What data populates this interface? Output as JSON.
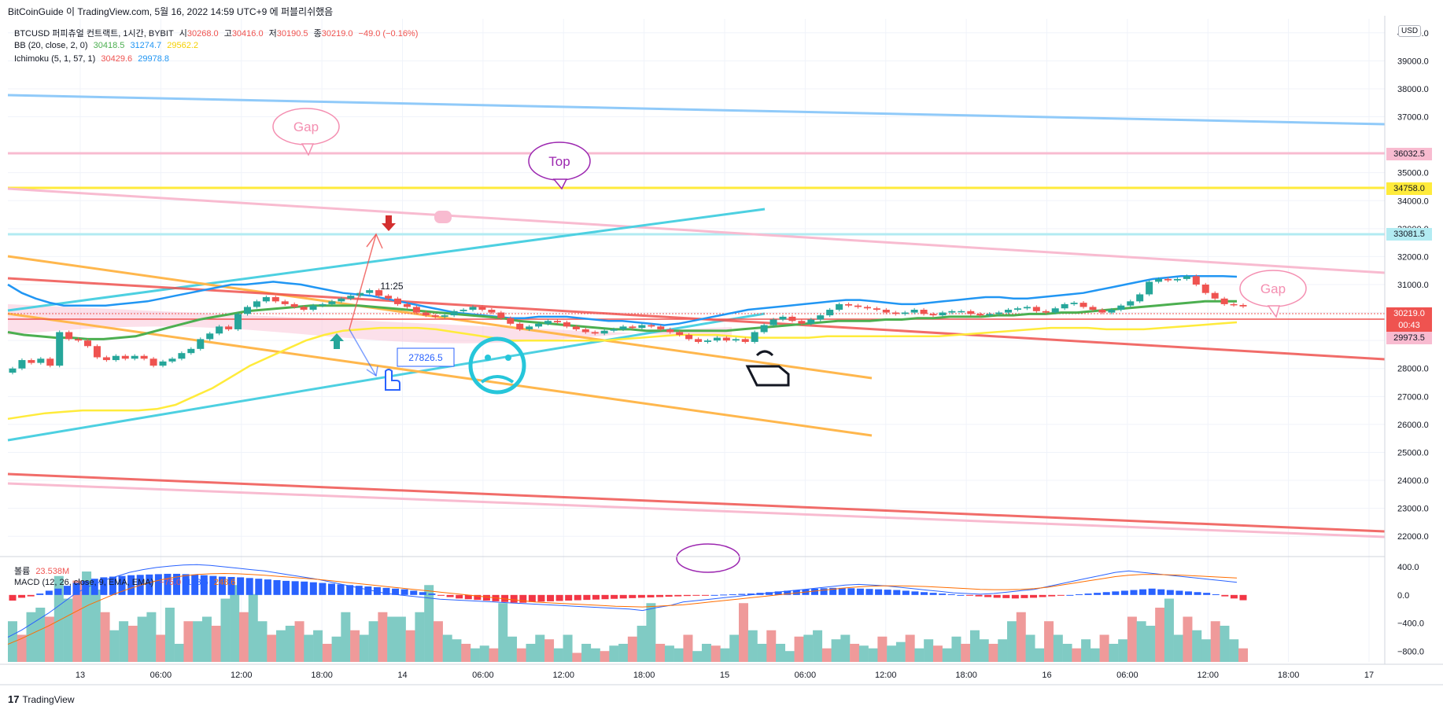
{
  "header": {
    "text": "BitCoinGuide 이 TradingView.com, 5월 16, 2022 14:59 UTC+9 에 퍼블리쉬했음"
  },
  "legend": {
    "symbol": {
      "name": "BTCUSD 퍼피츄얼 컨트랙트, 1시간, BYBIT",
      "o_label": "시",
      "o": "30268.0",
      "h_label": "고",
      "h": "30416.0",
      "l_label": "저",
      "l": "30190.5",
      "c_label": "종",
      "c": "30219.0",
      "chg": "−49.0 (−0.16%)"
    },
    "bb": {
      "name": "BB (20, close, 2, 0)",
      "v1": "30418.5",
      "v2": "31274.7",
      "v3": "29562.2"
    },
    "ichimoku": {
      "name": "Ichimoku (5, 1, 57, 1)",
      "v1": "30429.6",
      "v2": "29978.8"
    },
    "volume": {
      "name": "볼륨",
      "value": "23.538M"
    },
    "macd": {
      "name": "MACD (12, 26, close, 9, EMA, EMA)",
      "v1": "−75.0",
      "v2": "173.5",
      "v3": "248.6"
    }
  },
  "currency_button": "USD",
  "price_axis": [
    "40000.0",
    "39000.0",
    "38000.0",
    "37000.0",
    "35000.0",
    "34000.0",
    "33000.0",
    "32000.0",
    "31000.0",
    "30000.0",
    "29000.0",
    "28000.0",
    "27000.0",
    "26000.0",
    "25000.0",
    "24000.0",
    "23000.0",
    "22000.0"
  ],
  "price_tags": [
    {
      "label": "36032.5",
      "bg": "#f8bbd0",
      "fg": "#131722"
    },
    {
      "label": "34758.0",
      "bg": "#ffeb3b",
      "fg": "#131722"
    },
    {
      "label": "33081.5",
      "bg": "#b2ebf2",
      "fg": "#131722"
    },
    {
      "label": "30219.0",
      "bg": "#ef5350",
      "fg": "#ffffff"
    },
    {
      "label": "00:43",
      "bg": "#ef5350",
      "fg": "#ffffff"
    },
    {
      "label": "29973.5",
      "bg": "#f8bbd0",
      "fg": "#131722"
    }
  ],
  "macd_axis": [
    "400.0",
    "0.0",
    "−400.0",
    "−800.0"
  ],
  "time_axis": [
    "13",
    "06:00",
    "12:00",
    "18:00",
    "14",
    "06:00",
    "12:00",
    "18:00",
    "15",
    "06:00",
    "12:00",
    "18:00",
    "16",
    "06:00",
    "12:00",
    "18:00",
    "17"
  ],
  "annotations": {
    "gap_left": "Gap",
    "top": "Top",
    "gap_right": "Gap",
    "arrow_price": "27826.5",
    "arrow_time": "11:25"
  },
  "footer": {
    "brand": "TradingView"
  },
  "colors": {
    "up": "#26a69a",
    "down": "#ef5350",
    "bb_basis": "#4caf50",
    "bb_upper": "#2196f3",
    "bb_lower": "#ffeb3b",
    "macd_line": "#2962ff",
    "signal_line": "#ff6d00"
  },
  "chart_data": {
    "type": "candlestick",
    "symbol": "BTCUSD",
    "interval": "1시간",
    "ylim": [
      21500,
      40500
    ],
    "macd_ylim": [
      -950,
      500
    ],
    "x_ticks": [
      "13",
      "06:00",
      "12:00",
      "18:00",
      "14",
      "06:00",
      "12:00",
      "18:00",
      "15",
      "06:00",
      "12:00",
      "18:00",
      "16",
      "06:00",
      "12:00",
      "18:00",
      "17"
    ],
    "candles_start_time": "2022-05-12 22:00",
    "candles_close": [
      28000,
      28300,
      28200,
      28350,
      28100,
      29300,
      29050,
      29000,
      28800,
      28400,
      28300,
      28450,
      28350,
      28450,
      28350,
      28100,
      28250,
      28350,
      28550,
      28700,
      29050,
      29250,
      29500,
      29400,
      29950,
      30200,
      30400,
      30550,
      30400,
      30300,
      30200,
      30100,
      30250,
      30300,
      30400,
      30500,
      30600,
      30700,
      30800,
      30600,
      30500,
      30300,
      30200,
      30000,
      29900,
      29850,
      29900,
      30050,
      30100,
      30200,
      30100,
      30000,
      29800,
      29600,
      29400,
      29500,
      29600,
      29700,
      29650,
      29500,
      29400,
      29300,
      29250,
      29350,
      29400,
      29500,
      29450,
      29550,
      29500,
      29400,
      29300,
      29200,
      29050,
      28950,
      29000,
      29100,
      29000,
      29050,
      28950,
      29300,
      29550,
      29750,
      29850,
      29700,
      29600,
      29750,
      29900,
      30100,
      30300,
      30250,
      30200,
      30150,
      30100,
      30000,
      29950,
      30000,
      30100,
      29950,
      29900,
      30000,
      30050,
      30050,
      29950,
      29900,
      29950,
      30000,
      30100,
      30150,
      30200,
      30050,
      30000,
      30150,
      30300,
      30350,
      30200,
      30100,
      30000,
      30100,
      30250,
      30400,
      30650,
      31100,
      31200,
      31150,
      31200,
      31300,
      31000,
      30700,
      30500,
      30300,
      30270,
      30219
    ],
    "macd_hist": [
      -80,
      -40,
      -20,
      20,
      60,
      90,
      130,
      170,
      200,
      230,
      250,
      260,
      270,
      280,
      285,
      290,
      295,
      300,
      300,
      295,
      290,
      280,
      270,
      260,
      255,
      250,
      240,
      230,
      220,
      210,
      200,
      195,
      190,
      180,
      170,
      160,
      150,
      140,
      130,
      120,
      110,
      100,
      90,
      80,
      60,
      40,
      20,
      -10,
      -30,
      -50,
      -60,
      -70,
      -80,
      -90,
      -100,
      -110,
      -110,
      -100,
      -95,
      -90,
      -85,
      -80,
      -75,
      -70,
      -65,
      -60,
      -55,
      -50,
      -45,
      -40,
      -35,
      -30,
      -25,
      -20,
      -15,
      -10,
      -5,
      0,
      5,
      10,
      15,
      20,
      30,
      40,
      50,
      60,
      70,
      80,
      90,
      95,
      100,
      100,
      95,
      90,
      85,
      80,
      75,
      70,
      60,
      50,
      40,
      30,
      20,
      10,
      0,
      -10,
      -20,
      -30,
      -40,
      -45,
      -50,
      -45,
      -40,
      -30,
      -20,
      -10,
      0,
      10,
      20,
      30,
      40,
      50,
      60,
      70,
      80,
      90,
      80,
      70,
      60,
      50,
      40,
      30,
      10,
      -20,
      -50,
      -75
    ],
    "macd_line": [
      -600,
      -500,
      -380,
      -260,
      -120,
      20,
      120,
      200,
      260,
      320,
      360,
      390,
      410,
      425,
      430,
      420,
      400,
      380,
      360,
      340,
      310,
      280,
      250,
      220,
      180,
      140,
      100,
      60,
      20,
      0,
      -20,
      -40,
      -60,
      -70,
      -80,
      -90,
      -100,
      -110,
      -120,
      -130,
      -140,
      -150,
      -160,
      -170,
      -180,
      -190,
      -200,
      -220,
      -180,
      -150,
      -100,
      -80,
      -60,
      -40,
      -20,
      0,
      20,
      40,
      60,
      80,
      100,
      120,
      140,
      150,
      140,
      130,
      110,
      90,
      70,
      50,
      30,
      20,
      10,
      20,
      40,
      60,
      80,
      120,
      160,
      200,
      240,
      280,
      320,
      340,
      320,
      300,
      280,
      260,
      240,
      220,
      200,
      180
    ],
    "macd_signal": [
      -700,
      -620,
      -530,
      -440,
      -340,
      -240,
      -140,
      -60,
      20,
      90,
      150,
      200,
      240,
      270,
      290,
      300,
      305,
      300,
      290,
      280,
      265,
      250,
      235,
      220,
      200,
      180,
      160,
      140,
      120,
      100,
      80,
      60,
      40,
      20,
      0,
      -20,
      -40,
      -60,
      -80,
      -100,
      -110,
      -120,
      -130,
      -140,
      -150,
      -160,
      -165,
      -170,
      -160,
      -150,
      -140,
      -120,
      -100,
      -80,
      -60,
      -40,
      -20,
      0,
      20,
      40,
      60,
      80,
      100,
      115,
      125,
      130,
      130,
      125,
      120,
      110,
      100,
      90,
      80,
      75,
      75,
      80,
      90,
      110,
      140,
      170,
      200,
      230,
      260,
      280,
      290,
      290,
      285,
      280,
      270,
      260,
      250,
      240
    ],
    "volume_scale_max": 1,
    "volume": [
      0.45,
      0.3,
      0.55,
      0.6,
      0.5,
      0.95,
      0.7,
      0.9,
      1.0,
      0.8,
      0.55,
      0.35,
      0.45,
      0.4,
      0.5,
      0.55,
      0.3,
      0.6,
      0.2,
      0.45,
      0.45,
      0.5,
      0.4,
      0.7,
      0.85,
      0.55,
      0.75,
      0.45,
      0.3,
      0.35,
      0.4,
      0.45,
      0.3,
      0.35,
      0.2,
      0.28,
      0.55,
      0.35,
      0.3,
      0.45,
      0.55,
      0.5,
      0.5,
      0.35,
      0.55,
      0.85,
      0.45,
      0.3,
      0.25,
      0.2,
      0.15,
      0.18,
      0.15,
      0.65,
      0.28,
      0.15,
      0.2,
      0.3,
      0.25,
      0.15,
      0.3,
      0.1,
      0.2,
      0.15,
      0.12,
      0.18,
      0.2,
      0.28,
      0.4,
      0.65,
      0.2,
      0.18,
      0.15,
      0.3,
      0.12,
      0.2,
      0.18,
      0.15,
      0.3,
      0.65,
      0.35,
      0.2,
      0.35,
      0.2,
      0.12,
      0.28,
      0.3,
      0.35,
      0.15,
      0.25,
      0.3,
      0.2,
      0.18,
      0.15,
      0.28,
      0.18,
      0.22,
      0.3,
      0.15,
      0.25,
      0.18,
      0.15,
      0.28,
      0.2,
      0.35,
      0.25,
      0.2,
      0.25,
      0.45,
      0.55,
      0.3,
      0.15,
      0.45,
      0.3,
      0.2,
      0.15,
      0.25,
      0.15,
      0.3,
      0.2,
      0.25,
      0.5,
      0.45,
      0.4,
      0.6,
      0.7,
      0.3,
      0.5,
      0.35,
      0.25,
      0.45,
      0.4,
      0.25,
      0.15
    ],
    "bb_upper": [
      31000,
      30700,
      30500,
      30350,
      30250,
      30250,
      30250,
      30250,
      30300,
      30350,
      30400,
      30500,
      30600,
      30700,
      30800,
      30900,
      31000,
      31000,
      31050,
      31100,
      31050,
      31000,
      30900,
      30800,
      30700,
      30650,
      30600,
      30500,
      30400,
      30300,
      30200,
      30100,
      30000,
      29950,
      29900,
      29850,
      29800,
      29800,
      29850,
      29850,
      29850,
      29800,
      29750,
      29700,
      29700,
      29650,
      29600,
      29550,
      29600,
      29700,
      29800,
      29900,
      30000,
      30100,
      30150,
      30200,
      30250,
      30300,
      30350,
      30400,
      30450,
      30450,
      30400,
      30350,
      30300,
      30300,
      30350,
      30400,
      30450,
      30500,
      30550,
      30550,
      30500,
      30500,
      30550,
      30600,
      30650,
      30700,
      30800,
      30900,
      31000,
      31100,
      31200,
      31250,
      31300,
      31300,
      31300,
      31300,
      31280
    ],
    "bb_basis": [
      29300,
      29200,
      29150,
      29100,
      29100,
      29050,
      29050,
      29100,
      29150,
      29300,
      29450,
      29600,
      29750,
      29850,
      29950,
      30050,
      30100,
      30150,
      30200,
      30250,
      30250,
      30250,
      30250,
      30200,
      30150,
      30100,
      30050,
      30000,
      29950,
      29900,
      29850,
      29800,
      29700,
      29650,
      29600,
      29550,
      29500,
      29450,
      29400,
      29400,
      29350,
      29350,
      29350,
      29350,
      29350,
      29350,
      29400,
      29450,
      29500,
      29550,
      29600,
      29650,
      29700,
      29700,
      29700,
      29750,
      29750,
      29800,
      29800,
      29850,
      29850,
      29850,
      29900,
      29900,
      29950,
      29950,
      30000,
      30000,
      30050,
      30100,
      30150,
      30200,
      30250,
      30300,
      30350,
      30400,
      30400,
      30400
    ],
    "bb_lower": [
      26200,
      26300,
      26400,
      26450,
      26500,
      26500,
      26500,
      26500,
      26550,
      26700,
      27000,
      27300,
      27700,
      28100,
      28400,
      28700,
      29000,
      29200,
      29350,
      29400,
      29450,
      29450,
      29450,
      29400,
      29300,
      29200,
      29100,
      29000,
      29000,
      29000,
      29000,
      29000,
      29000,
      29050,
      29100,
      29150,
      29200,
      29200,
      29200,
      29150,
      29100,
      29100,
      29100,
      29100,
      29150,
      29150,
      29150,
      29150,
      29150,
      29150,
      29150,
      29200,
      29250,
      29300,
      29350,
      29400,
      29450,
      29450,
      29450,
      29400,
      29400,
      29400,
      29450,
      29500,
      29550,
      29600,
      29650
    ]
  }
}
